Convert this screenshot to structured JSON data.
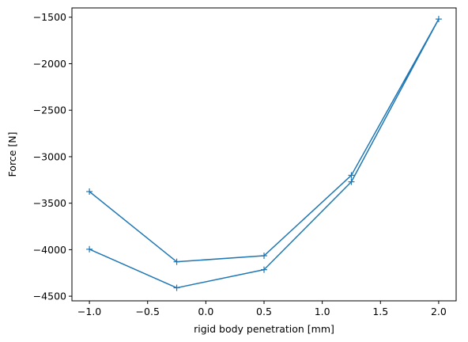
{
  "chart_data": {
    "type": "line",
    "title": "",
    "xlabel": "rigid body penetration [mm]",
    "ylabel": "Force [N]",
    "xlim": [
      -1.15,
      2.15
    ],
    "ylim": [
      -4550,
      -1400
    ],
    "xticks": [
      -1.0,
      -0.5,
      0.0,
      0.5,
      1.0,
      1.5,
      2.0
    ],
    "xtick_labels": [
      "−1.0",
      "−0.5",
      "0.0",
      "0.5",
      "1.0",
      "1.5",
      "2.0"
    ],
    "yticks": [
      -4500,
      -4000,
      -3500,
      -3000,
      -2500,
      -2000,
      -1500
    ],
    "ytick_labels": [
      "−4500",
      "−4000",
      "−3500",
      "−3000",
      "−2500",
      "−2000",
      "−1500"
    ],
    "grid": false,
    "marker": "+",
    "color": "#1f77b4",
    "series": [
      {
        "x": [
          -1.0,
          -0.25,
          0.5,
          1.25,
          2.0,
          1.25,
          0.5,
          -0.25,
          -1.0
        ],
        "y": [
          -3375,
          -4130,
          -4065,
          -3200,
          -1520,
          -3270,
          -4215,
          -4410,
          -3995
        ]
      }
    ]
  }
}
